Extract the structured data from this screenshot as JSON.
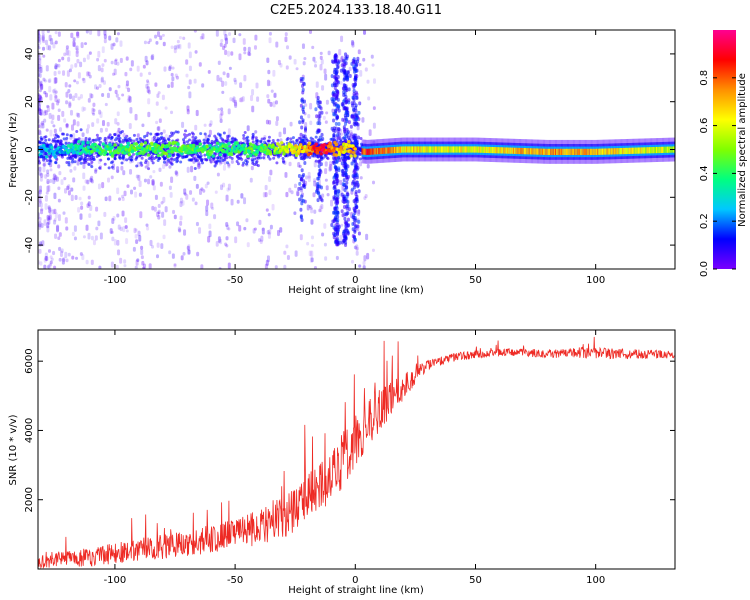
{
  "title": "C2E5.2024.133.18.40.G11",
  "chart_data": [
    {
      "type": "heatmap",
      "xlabel": "Height of straight line (km)",
      "ylabel": "Frequency (Hz)",
      "xlim": [
        -132,
        133
      ],
      "ylim": [
        -50,
        50
      ],
      "xticks": [
        -100,
        -50,
        0,
        50,
        100
      ],
      "yticks": [
        -40,
        -20,
        0,
        20,
        40
      ],
      "grid": false,
      "colorbar": {
        "label": "Normalized spectral amplitude",
        "range": [
          0,
          1
        ],
        "ticks": [
          0.0,
          0.2,
          0.4,
          0.6,
          0.8
        ],
        "colormap": [
          "#7a00ff",
          "#0000ff",
          "#00c8ff",
          "#00ff80",
          "#80ff00",
          "#ffff00",
          "#ff9000",
          "#ff0000",
          "#ff0090"
        ]
      },
      "ridge": [
        {
          "x": -130,
          "freq": 0,
          "amplitude": 0.18
        },
        {
          "x": -110,
          "freq": 0,
          "amplitude": 0.35
        },
        {
          "x": -90,
          "freq": 0,
          "amplitude": 0.42
        },
        {
          "x": -70,
          "freq": 0,
          "amplitude": 0.4
        },
        {
          "x": -50,
          "freq": 0,
          "amplitude": 0.38
        },
        {
          "x": -35,
          "freq": 0,
          "amplitude": 0.45
        },
        {
          "x": -20,
          "freq": 0,
          "amplitude": 0.7
        },
        {
          "x": -15,
          "freq": 0,
          "amplitude": 0.9
        },
        {
          "x": -5,
          "freq": 0,
          "amplitude": 0.6
        },
        {
          "x": 5,
          "freq": -1,
          "amplitude": 0.85
        },
        {
          "x": 20,
          "freq": 0,
          "amplitude": 0.65
        },
        {
          "x": 50,
          "freq": 0,
          "amplitude": 0.6
        },
        {
          "x": 80,
          "freq": -1,
          "amplitude": 0.75
        },
        {
          "x": 100,
          "freq": -1,
          "amplitude": 0.7
        },
        {
          "x": 133,
          "freq": 0,
          "amplitude": 0.55
        }
      ]
    },
    {
      "type": "line",
      "xlabel": "Height of straight line (km)",
      "ylabel": "SNR (10 * v/v)",
      "xlim": [
        -132,
        133
      ],
      "ylim": [
        0,
        6900
      ],
      "xticks": [
        -100,
        -50,
        0,
        50,
        100
      ],
      "yticks": [
        2000,
        4000,
        6000
      ],
      "grid": false,
      "series": [
        {
          "color": "#ee2a24",
          "x": [
            -132,
            -120,
            -110,
            -100,
            -90,
            -80,
            -70,
            -60,
            -50,
            -40,
            -30,
            -20,
            -15,
            -10,
            -5,
            0,
            5,
            10,
            15,
            20,
            25,
            30,
            40,
            50,
            60,
            70,
            80,
            90,
            100,
            110,
            120,
            133
          ],
          "y": [
            200,
            300,
            350,
            450,
            550,
            650,
            750,
            850,
            1000,
            1200,
            1500,
            2000,
            2300,
            2700,
            3200,
            3700,
            4200,
            4500,
            4800,
            5200,
            5600,
            5900,
            6100,
            6200,
            6250,
            6250,
            6200,
            6250,
            6250,
            6200,
            6200,
            6200
          ],
          "spread": [
            300,
            400,
            450,
            500,
            550,
            600,
            650,
            700,
            750,
            850,
            1000,
            1200,
            1300,
            1400,
            1400,
            1300,
            1200,
            1200,
            1000,
            700,
            400,
            250,
            200,
            200,
            180,
            180,
            220,
            250,
            280,
            260,
            220,
            200
          ]
        }
      ]
    }
  ]
}
